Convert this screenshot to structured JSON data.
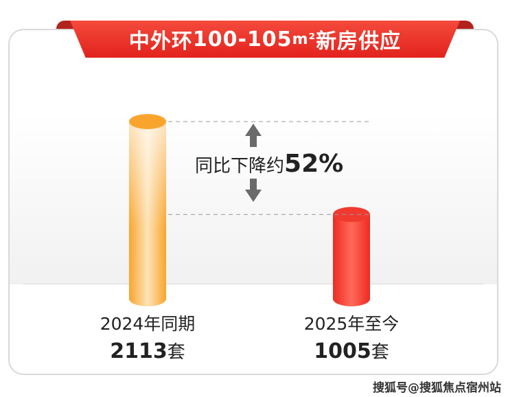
{
  "title": {
    "prefix": "中外环",
    "number": "100-105",
    "unit": "m²",
    "suffix": "新房供应"
  },
  "chart_data": {
    "type": "bar",
    "title": "中外环100-105m²新房供应",
    "categories": [
      "2024年同期",
      "2025年至今"
    ],
    "values": [
      2113,
      1005
    ],
    "value_labels": [
      "2113",
      "1005"
    ],
    "unit": "套",
    "annotation": {
      "text": "同比下降约",
      "value": "52%"
    },
    "colors": [
      "#f9a52d",
      "#f03a2f"
    ]
  },
  "watermark": "搜狐号@搜狐焦点宿州站"
}
